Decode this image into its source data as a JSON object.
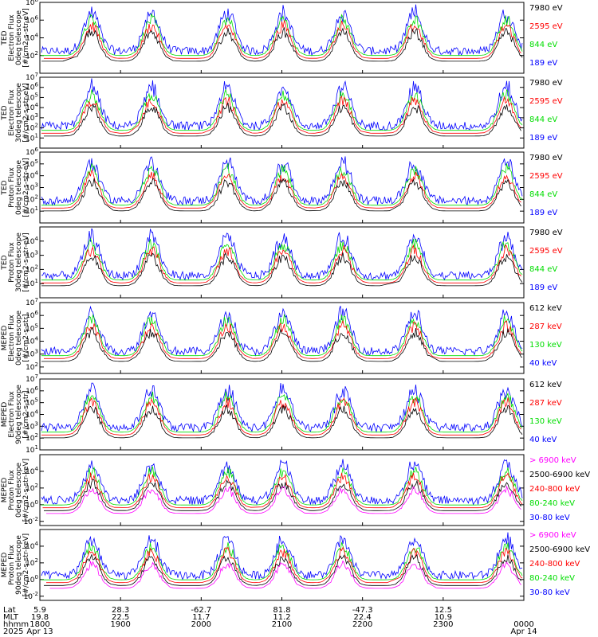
{
  "chart_data": [
    {
      "type": "line",
      "ylabel_lines": [
        "TED",
        "Electron Flux",
        "0deg telescope",
        "[#/cm2-s-str-eV]"
      ],
      "y_exp": [
        2,
        4,
        6,
        8
      ],
      "y_labels": [
        "10^2",
        "10^4",
        "10^6",
        "10^8"
      ],
      "ylim_exp": [
        0,
        8
      ],
      "series": [
        {
          "name": "7980 eV",
          "color": "#000000"
        },
        {
          "name": "2595 eV",
          "color": "#ff0000"
        },
        {
          "name": "844 eV",
          "color": "#00dd00"
        },
        {
          "name": "189 eV",
          "color": "#0000ff"
        }
      ]
    },
    {
      "type": "line",
      "ylabel_lines": [
        "TED",
        "Electron Flux",
        "30deg telescope",
        "[#/cm2-s-str-eV]"
      ],
      "y_exp": [
        1,
        2,
        3,
        4,
        5,
        6,
        7
      ],
      "y_labels": [
        "10^1",
        "10^2",
        "10^3",
        "10^4",
        "10^5",
        "10^6",
        "10^7"
      ],
      "ylim_exp": [
        0,
        7
      ],
      "series": [
        {
          "name": "7980 eV",
          "color": "#000000"
        },
        {
          "name": "2595 eV",
          "color": "#ff0000"
        },
        {
          "name": "844 eV",
          "color": "#00dd00"
        },
        {
          "name": "189 eV",
          "color": "#0000ff"
        }
      ]
    },
    {
      "type": "line",
      "ylabel_lines": [
        "TED",
        "Proton Flux",
        "0deg telescope",
        "[#/cm2-s-str-eV]"
      ],
      "y_exp": [
        1,
        2,
        3,
        4,
        5,
        6
      ],
      "y_labels": [
        "10^1",
        "10^2",
        "10^3",
        "10^4",
        "10^5",
        "10^6"
      ],
      "ylim_exp": [
        0,
        6
      ],
      "series": [
        {
          "name": "7980 eV",
          "color": "#000000"
        },
        {
          "name": "2595 eV",
          "color": "#ff0000"
        },
        {
          "name": "844 eV",
          "color": "#00dd00"
        },
        {
          "name": "189 eV",
          "color": "#0000ff"
        }
      ]
    },
    {
      "type": "line",
      "ylabel_lines": [
        "TED",
        "Proton Flux",
        "30deg telescope",
        "[#/cm2-s-str-eV]"
      ],
      "y_exp": [
        1,
        2,
        3,
        4
      ],
      "y_labels": [
        "10^1",
        "10^2",
        "10^3",
        "10^4"
      ],
      "ylim_exp": [
        0,
        5
      ],
      "series": [
        {
          "name": "7980 eV",
          "color": "#000000"
        },
        {
          "name": "2595 eV",
          "color": "#ff0000"
        },
        {
          "name": "844 eV",
          "color": "#00dd00"
        },
        {
          "name": "189 eV",
          "color": "#0000ff"
        }
      ]
    },
    {
      "type": "line",
      "ylabel_lines": [
        "MEPED",
        "Electron Flux",
        "0deg telescope",
        "[#/cm2-s-str]"
      ],
      "y_exp": [
        2,
        3,
        4,
        5,
        6,
        7
      ],
      "y_labels": [
        "10^2",
        "10^3",
        "10^4",
        "10^5",
        "10^6",
        "10^7"
      ],
      "ylim_exp": [
        1.5,
        7
      ],
      "series": [
        {
          "name": "612 keV",
          "color": "#000000"
        },
        {
          "name": "287 keV",
          "color": "#ff0000"
        },
        {
          "name": "130 keV",
          "color": "#00dd00"
        },
        {
          "name": "40 keV",
          "color": "#0000ff"
        }
      ]
    },
    {
      "type": "line",
      "ylabel_lines": [
        "MEPED",
        "Electron Flux",
        "90deg telescope",
        "[#/cm2-s-str]"
      ],
      "y_exp": [
        1,
        2,
        3,
        4,
        5,
        6,
        7
      ],
      "y_labels": [
        "10^1",
        "10^2",
        "10^3",
        "10^4",
        "10^5",
        "10^6",
        "10^7"
      ],
      "ylim_exp": [
        1,
        7
      ],
      "series": [
        {
          "name": "612 keV",
          "color": "#000000"
        },
        {
          "name": "287 keV",
          "color": "#ff0000"
        },
        {
          "name": "130 keV",
          "color": "#00dd00"
        },
        {
          "name": "40 keV",
          "color": "#0000ff"
        }
      ]
    },
    {
      "type": "line",
      "ylabel_lines": [
        "MEPED",
        "Proton Flux",
        "0deg telescope",
        "[#/cm2-s-str-keV]"
      ],
      "y_exp": [
        -2,
        0,
        2,
        4
      ],
      "y_labels": [
        "10^-2",
        "10^0",
        "10^2",
        "10^4"
      ],
      "ylim_exp": [
        -2.5,
        6
      ],
      "series": [
        {
          "name": "> 6900 keV",
          "color": "#ff00ff"
        },
        {
          "name": "2500-6900 keV",
          "color": "#000000"
        },
        {
          "name": "240-800 keV",
          "color": "#ff0000"
        },
        {
          "name": "80-240 keV",
          "color": "#00dd00"
        },
        {
          "name": "30-80 keV",
          "color": "#0000ff"
        }
      ]
    },
    {
      "type": "line",
      "ylabel_lines": [
        "MEPED",
        "Proton Flux",
        "90deg telescope",
        "[#/cm2-s-str-keV]"
      ],
      "y_exp": [
        -2,
        0,
        2,
        4
      ],
      "y_labels": [
        "10^-2",
        "10^0",
        "10^2",
        "10^4"
      ],
      "ylim_exp": [
        -2.5,
        6
      ],
      "series": [
        {
          "name": "> 6900 keV",
          "color": "#ff00ff"
        },
        {
          "name": "2500-6900 keV",
          "color": "#000000"
        },
        {
          "name": "240-800 keV",
          "color": "#ff0000"
        },
        {
          "name": "80-240 keV",
          "color": "#00dd00"
        },
        {
          "name": "30-80 keV",
          "color": "#0000ff"
        }
      ]
    }
  ],
  "x_axis": {
    "row_labels": [
      "Lat",
      "MLT",
      "hhmm",
      "2025"
    ],
    "ticks": [
      {
        "hhmm": "1800",
        "lat": "5.9",
        "mlt": "19.8",
        "date": "Apr 13"
      },
      {
        "hhmm": "1900",
        "lat": "28.3",
        "mlt": "22.5",
        "date": ""
      },
      {
        "hhmm": "2000",
        "lat": "-62.7",
        "mlt": "11.7",
        "date": ""
      },
      {
        "hhmm": "2100",
        "lat": "81.8",
        "mlt": "11.2",
        "date": ""
      },
      {
        "hhmm": "2200",
        "lat": "-47.3",
        "mlt": "22.4",
        "date": ""
      },
      {
        "hhmm": "2300",
        "lat": "12.5",
        "mlt": "10.9",
        "date": ""
      },
      {
        "hhmm": "0000",
        "lat": "",
        "mlt": "",
        "date": "Apr 14"
      }
    ],
    "minutes_from_start": [
      0,
      60,
      120,
      180,
      240,
      300,
      360
    ]
  }
}
